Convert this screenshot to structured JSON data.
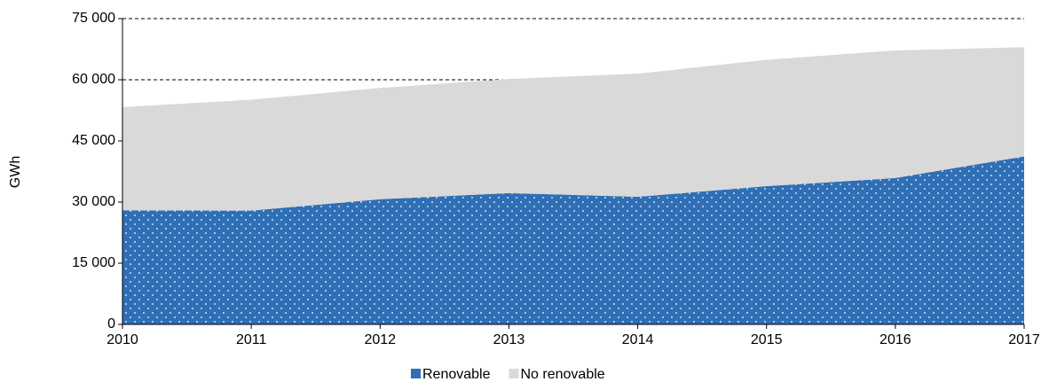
{
  "chart_data": {
    "type": "area",
    "stacked": true,
    "y_label": "GWh",
    "x": [
      2010,
      2011,
      2012,
      2013,
      2014,
      2015,
      2016,
      2017
    ],
    "series": [
      {
        "name": "Renovable",
        "color": "#2f6fb6",
        "values": [
          28000,
          27900,
          30700,
          32200,
          31300,
          33900,
          35900,
          41200
        ]
      },
      {
        "name": "No renovable",
        "color": "#d9d9d9",
        "values": [
          25300,
          27200,
          27300,
          28000,
          30200,
          31000,
          31300,
          26800
        ]
      }
    ],
    "xlim": [
      2010,
      2017
    ],
    "xticks": [
      2010,
      2011,
      2012,
      2013,
      2014,
      2015,
      2016,
      2017
    ],
    "ylim": [
      0,
      75000
    ],
    "yticks": [
      {
        "value": 0,
        "label": "0"
      },
      {
        "value": 15000,
        "label": "15 000"
      },
      {
        "value": 30000,
        "label": "30 000"
      },
      {
        "value": 45000,
        "label": "45 000"
      },
      {
        "value": 60000,
        "label": "60 000"
      },
      {
        "value": 75000,
        "label": "75 000"
      }
    ],
    "grid": true,
    "legend": "bottom"
  }
}
